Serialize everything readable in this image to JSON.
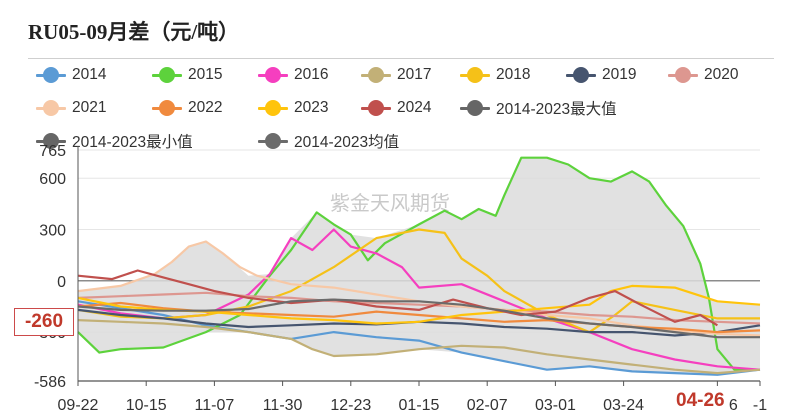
{
  "title": "RU05-09月差（元/吨）",
  "watermark": "紫金天风期货",
  "current_value_tag": "-260",
  "current_date_tag": "04-26",
  "chart_data": {
    "type": "line",
    "ylim": [
      -586,
      765
    ],
    "ytick_labels": [
      "765",
      "600",
      "300",
      "0",
      "-300",
      "-586"
    ],
    "ytick_values": [
      765,
      600,
      300,
      0,
      -300,
      -586
    ],
    "x_tick_labels": [
      "09-22",
      "10-15",
      "11-07",
      "11-30",
      "12-23",
      "01-15",
      "02-07",
      "03-01",
      "03-24",
      "04-26",
      "-1"
    ],
    "x_tick_positions": [
      0,
      16,
      32,
      48,
      64,
      80,
      96,
      112,
      128,
      150,
      160
    ],
    "x_max": 160,
    "band": {
      "max_series": "2014-2023最大值",
      "min_series": "2014-2023最小值",
      "fill": "#dcdcdc"
    },
    "series": [
      {
        "name": "2014",
        "color": "#5b9bd5",
        "values": [
          [
            0,
            -120
          ],
          [
            10,
            -160
          ],
          [
            20,
            -200
          ],
          [
            30,
            -260
          ],
          [
            40,
            -300
          ],
          [
            50,
            -340
          ],
          [
            60,
            -300
          ],
          [
            70,
            -330
          ],
          [
            80,
            -350
          ],
          [
            90,
            -420
          ],
          [
            100,
            -470
          ],
          [
            110,
            -520
          ],
          [
            120,
            -500
          ],
          [
            130,
            -530
          ],
          [
            140,
            -540
          ],
          [
            150,
            -550
          ],
          [
            160,
            -520
          ]
        ]
      },
      {
        "name": "2015",
        "color": "#5dd23c",
        "values": [
          [
            0,
            -300
          ],
          [
            5,
            -420
          ],
          [
            10,
            -400
          ],
          [
            20,
            -390
          ],
          [
            30,
            -300
          ],
          [
            38,
            -200
          ],
          [
            45,
            30
          ],
          [
            50,
            180
          ],
          [
            56,
            400
          ],
          [
            60,
            330
          ],
          [
            64,
            270
          ],
          [
            68,
            120
          ],
          [
            72,
            220
          ],
          [
            80,
            330
          ],
          [
            86,
            410
          ],
          [
            90,
            360
          ],
          [
            94,
            420
          ],
          [
            98,
            380
          ],
          [
            100,
            500
          ],
          [
            104,
            720
          ],
          [
            110,
            720
          ],
          [
            115,
            680
          ],
          [
            120,
            600
          ],
          [
            125,
            580
          ],
          [
            130,
            640
          ],
          [
            134,
            580
          ],
          [
            138,
            440
          ],
          [
            142,
            320
          ],
          [
            146,
            100
          ],
          [
            148,
            -100
          ],
          [
            150,
            -400
          ],
          [
            154,
            -520
          ],
          [
            160,
            -520
          ]
        ]
      },
      {
        "name": "2016",
        "color": "#f53fbf",
        "values": [
          [
            0,
            -140
          ],
          [
            10,
            -190
          ],
          [
            20,
            -220
          ],
          [
            30,
            -200
          ],
          [
            40,
            -80
          ],
          [
            45,
            40
          ],
          [
            50,
            250
          ],
          [
            55,
            180
          ],
          [
            60,
            300
          ],
          [
            64,
            200
          ],
          [
            70,
            160
          ],
          [
            76,
            80
          ],
          [
            80,
            -40
          ],
          [
            90,
            -20
          ],
          [
            100,
            -120
          ],
          [
            110,
            -220
          ],
          [
            120,
            -300
          ],
          [
            130,
            -400
          ],
          [
            140,
            -460
          ],
          [
            150,
            -500
          ],
          [
            160,
            -520
          ]
        ]
      },
      {
        "name": "2017",
        "color": "#c2b077",
        "values": [
          [
            0,
            -230
          ],
          [
            10,
            -240
          ],
          [
            20,
            -250
          ],
          [
            30,
            -270
          ],
          [
            40,
            -300
          ],
          [
            50,
            -340
          ],
          [
            55,
            -400
          ],
          [
            60,
            -440
          ],
          [
            70,
            -430
          ],
          [
            80,
            -400
          ],
          [
            90,
            -380
          ],
          [
            100,
            -390
          ],
          [
            110,
            -430
          ],
          [
            120,
            -460
          ],
          [
            130,
            -490
          ],
          [
            140,
            -520
          ],
          [
            150,
            -540
          ],
          [
            160,
            -520
          ]
        ]
      },
      {
        "name": "2018",
        "color": "#f5c118",
        "values": [
          [
            0,
            -170
          ],
          [
            10,
            -210
          ],
          [
            20,
            -220
          ],
          [
            30,
            -200
          ],
          [
            40,
            -150
          ],
          [
            50,
            -60
          ],
          [
            60,
            80
          ],
          [
            70,
            250
          ],
          [
            80,
            300
          ],
          [
            86,
            280
          ],
          [
            90,
            130
          ],
          [
            96,
            30
          ],
          [
            100,
            -60
          ],
          [
            110,
            -200
          ],
          [
            120,
            -300
          ],
          [
            126,
            -200
          ],
          [
            130,
            -120
          ],
          [
            140,
            -170
          ],
          [
            150,
            -220
          ],
          [
            160,
            -220
          ]
        ]
      },
      {
        "name": "2019",
        "color": "#46556f",
        "values": [
          [
            0,
            -170
          ],
          [
            10,
            -200
          ],
          [
            20,
            -220
          ],
          [
            30,
            -250
          ],
          [
            40,
            -270
          ],
          [
            50,
            -260
          ],
          [
            60,
            -250
          ],
          [
            70,
            -255
          ],
          [
            80,
            -240
          ],
          [
            90,
            -250
          ],
          [
            100,
            -270
          ],
          [
            110,
            -280
          ],
          [
            120,
            -300
          ],
          [
            130,
            -300
          ],
          [
            140,
            -320
          ],
          [
            150,
            -300
          ],
          [
            160,
            -260
          ]
        ]
      },
      {
        "name": "2020",
        "color": "#dd9790",
        "values": [
          [
            0,
            -100
          ],
          [
            10,
            -90
          ],
          [
            20,
            -80
          ],
          [
            30,
            -70
          ],
          [
            40,
            -90
          ],
          [
            50,
            -100
          ],
          [
            60,
            -120
          ],
          [
            70,
            -130
          ],
          [
            80,
            -140
          ],
          [
            90,
            -150
          ],
          [
            100,
            -170
          ],
          [
            110,
            -180
          ],
          [
            120,
            -200
          ],
          [
            130,
            -210
          ],
          [
            140,
            -230
          ],
          [
            150,
            -240
          ],
          [
            160,
            -250
          ]
        ]
      },
      {
        "name": "2021",
        "color": "#f7c8a6",
        "values": [
          [
            0,
            -60
          ],
          [
            10,
            -30
          ],
          [
            18,
            40
          ],
          [
            22,
            110
          ],
          [
            26,
            200
          ],
          [
            30,
            230
          ],
          [
            34,
            160
          ],
          [
            38,
            80
          ],
          [
            42,
            30
          ],
          [
            50,
            -20
          ],
          [
            60,
            -40
          ],
          [
            70,
            -80
          ],
          [
            80,
            -120
          ],
          [
            90,
            -150
          ],
          [
            100,
            -170
          ],
          [
            110,
            -200
          ],
          [
            120,
            -220
          ],
          [
            130,
            -260
          ],
          [
            140,
            -290
          ],
          [
            150,
            -310
          ],
          [
            160,
            -320
          ]
        ]
      },
      {
        "name": "2022",
        "color": "#f08a3e",
        "values": [
          [
            0,
            -150
          ],
          [
            10,
            -130
          ],
          [
            20,
            -160
          ],
          [
            30,
            -180
          ],
          [
            40,
            -190
          ],
          [
            50,
            -200
          ],
          [
            60,
            -210
          ],
          [
            70,
            -180
          ],
          [
            80,
            -200
          ],
          [
            90,
            -220
          ],
          [
            100,
            -240
          ],
          [
            110,
            -230
          ],
          [
            120,
            -250
          ],
          [
            130,
            -270
          ],
          [
            140,
            -280
          ],
          [
            150,
            -300
          ],
          [
            160,
            -290
          ]
        ]
      },
      {
        "name": "2023",
        "color": "#ffc40c",
        "values": [
          [
            0,
            -100
          ],
          [
            10,
            -150
          ],
          [
            20,
            -170
          ],
          [
            30,
            -180
          ],
          [
            40,
            -200
          ],
          [
            50,
            -220
          ],
          [
            60,
            -230
          ],
          [
            70,
            -250
          ],
          [
            80,
            -240
          ],
          [
            90,
            -200
          ],
          [
            100,
            -180
          ],
          [
            110,
            -160
          ],
          [
            120,
            -140
          ],
          [
            125,
            -60
          ],
          [
            130,
            -30
          ],
          [
            140,
            -40
          ],
          [
            150,
            -120
          ],
          [
            160,
            -140
          ]
        ]
      },
      {
        "name": "2024",
        "color": "#c0504d",
        "values": [
          [
            0,
            30
          ],
          [
            8,
            10
          ],
          [
            14,
            60
          ],
          [
            20,
            20
          ],
          [
            26,
            -20
          ],
          [
            32,
            -60
          ],
          [
            40,
            -100
          ],
          [
            50,
            -130
          ],
          [
            60,
            -110
          ],
          [
            70,
            -150
          ],
          [
            80,
            -170
          ],
          [
            88,
            -110
          ],
          [
            96,
            -160
          ],
          [
            104,
            -200
          ],
          [
            112,
            -180
          ],
          [
            120,
            -100
          ],
          [
            126,
            -60
          ],
          [
            132,
            -140
          ],
          [
            140,
            -240
          ],
          [
            146,
            -200
          ],
          [
            150,
            -260
          ]
        ]
      },
      {
        "name": "2014-2023最大值",
        "color": "#666666",
        "values": [
          [
            0,
            -60
          ],
          [
            10,
            -30
          ],
          [
            18,
            40
          ],
          [
            22,
            110
          ],
          [
            26,
            200
          ],
          [
            30,
            230
          ],
          [
            34,
            160
          ],
          [
            40,
            30
          ],
          [
            45,
            40
          ],
          [
            50,
            250
          ],
          [
            56,
            400
          ],
          [
            60,
            330
          ],
          [
            64,
            270
          ],
          [
            70,
            250
          ],
          [
            80,
            330
          ],
          [
            86,
            410
          ],
          [
            90,
            360
          ],
          [
            94,
            420
          ],
          [
            98,
            380
          ],
          [
            100,
            500
          ],
          [
            104,
            720
          ],
          [
            110,
            720
          ],
          [
            115,
            680
          ],
          [
            120,
            600
          ],
          [
            125,
            580
          ],
          [
            130,
            640
          ],
          [
            134,
            580
          ],
          [
            138,
            440
          ],
          [
            142,
            320
          ],
          [
            146,
            100
          ],
          [
            148,
            -100
          ],
          [
            150,
            -120
          ],
          [
            160,
            -140
          ]
        ]
      },
      {
        "name": "2014-2023最小值",
        "color": "#666666",
        "values": [
          [
            0,
            -300
          ],
          [
            5,
            -420
          ],
          [
            10,
            -400
          ],
          [
            20,
            -390
          ],
          [
            30,
            -300
          ],
          [
            40,
            -300
          ],
          [
            50,
            -340
          ],
          [
            55,
            -400
          ],
          [
            60,
            -440
          ],
          [
            70,
            -430
          ],
          [
            80,
            -400
          ],
          [
            90,
            -420
          ],
          [
            100,
            -470
          ],
          [
            110,
            -520
          ],
          [
            120,
            -500
          ],
          [
            130,
            -530
          ],
          [
            140,
            -540
          ],
          [
            150,
            -550
          ],
          [
            160,
            -520
          ]
        ]
      },
      {
        "name": "2014-2023均值",
        "color": "#6b6b6b",
        "values": [
          [
            0,
            -150
          ],
          [
            10,
            -170
          ],
          [
            20,
            -175
          ],
          [
            30,
            -175
          ],
          [
            40,
            -165
          ],
          [
            50,
            -120
          ],
          [
            60,
            -110
          ],
          [
            70,
            -120
          ],
          [
            80,
            -120
          ],
          [
            90,
            -140
          ],
          [
            100,
            -175
          ],
          [
            110,
            -220
          ],
          [
            120,
            -250
          ],
          [
            130,
            -270
          ],
          [
            140,
            -300
          ],
          [
            150,
            -330
          ],
          [
            160,
            -330
          ]
        ]
      }
    ]
  }
}
